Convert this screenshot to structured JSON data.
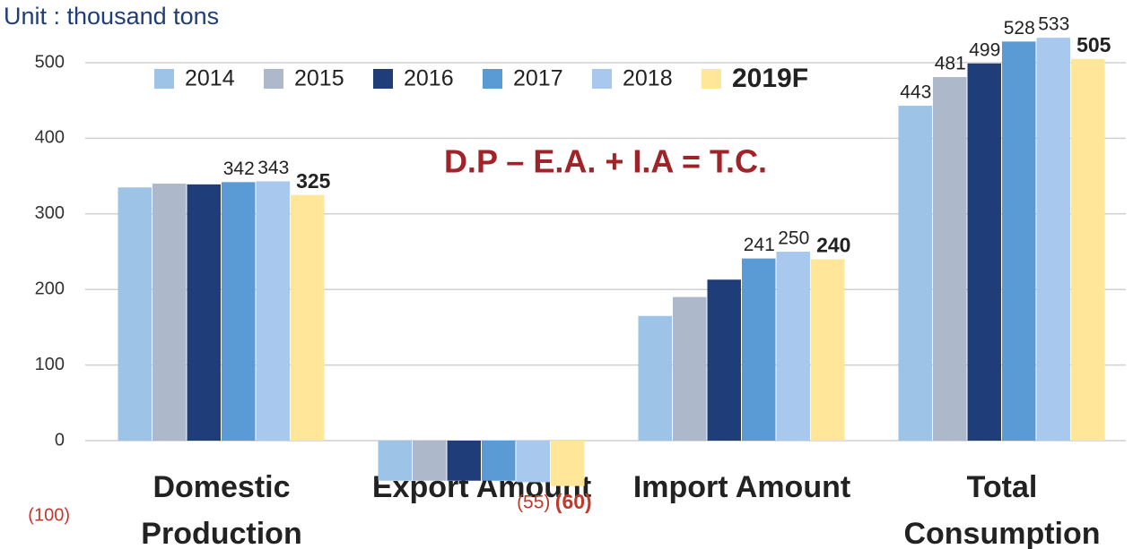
{
  "chart_data": {
    "type": "bar",
    "subtitle": "Unit : thousand  tons",
    "annotation": "D.P – E.A. + I.A = T.C.",
    "categories": [
      [
        "Domestic",
        "Production"
      ],
      [
        "Export Amount"
      ],
      [
        "Import Amount"
      ],
      [
        "Total",
        "Consumption"
      ]
    ],
    "series": [
      {
        "name": "2014",
        "color": "#9dc3e6",
        "values": [
          335,
          -53,
          165,
          443
        ],
        "value_labels": [
          null,
          null,
          null,
          "443"
        ]
      },
      {
        "name": "2015",
        "color": "#adb9ca",
        "values": [
          340,
          -53,
          190,
          481
        ],
        "value_labels": [
          null,
          null,
          null,
          "481"
        ]
      },
      {
        "name": "2016",
        "color": "#1f3d78",
        "values": [
          339,
          -53,
          213,
          499
        ],
        "value_labels": [
          null,
          null,
          null,
          "499"
        ]
      },
      {
        "name": "2017",
        "color": "#5b9bd5",
        "values": [
          342,
          -53,
          241,
          528
        ],
        "value_labels": [
          "342",
          null,
          "241",
          "528"
        ]
      },
      {
        "name": "2018",
        "color": "#a9c8ee",
        "values": [
          343,
          -55,
          250,
          533
        ],
        "value_labels": [
          "343",
          "(55)",
          "250",
          "533"
        ]
      },
      {
        "name": "2019F",
        "color": "#ffe699",
        "values": [
          325,
          -60,
          240,
          505
        ],
        "value_labels": [
          "325",
          "(60)",
          "240",
          "505"
        ]
      }
    ],
    "ylim": [
      -100,
      550
    ],
    "yticks": [
      {
        "value": -100,
        "label": "(100)"
      },
      0,
      100,
      200,
      300,
      400,
      500
    ],
    "grid": true
  }
}
